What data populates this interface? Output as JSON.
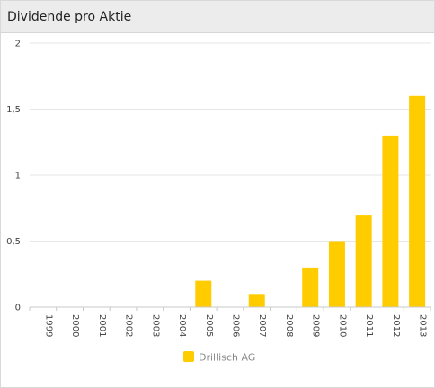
{
  "panel": {
    "title": "Dividende pro Aktie"
  },
  "chart_data": {
    "type": "bar",
    "categories": [
      "1999",
      "2000",
      "2001",
      "2002",
      "2003",
      "2004",
      "2005",
      "2006",
      "2007",
      "2008",
      "2009",
      "2010",
      "2011",
      "2012",
      "2013"
    ],
    "series": [
      {
        "name": "Drillisch AG",
        "values": [
          0,
          0,
          0,
          0,
          0,
          0,
          0.2,
          0,
          0.1,
          0,
          0.3,
          0.5,
          0.7,
          1.3,
          1.6
        ]
      }
    ],
    "ylim": [
      0,
      2
    ],
    "yticks": [
      0,
      0.5,
      1,
      1.5,
      2
    ],
    "ytick_labels": [
      "0",
      "0,5",
      "1",
      "1,5",
      "2"
    ],
    "grid": true,
    "legend_position": "bottom-center",
    "colors": {
      "bar": "#ffcc00",
      "grid": "#e6e6e6",
      "axis": "#c8c8c8"
    }
  }
}
